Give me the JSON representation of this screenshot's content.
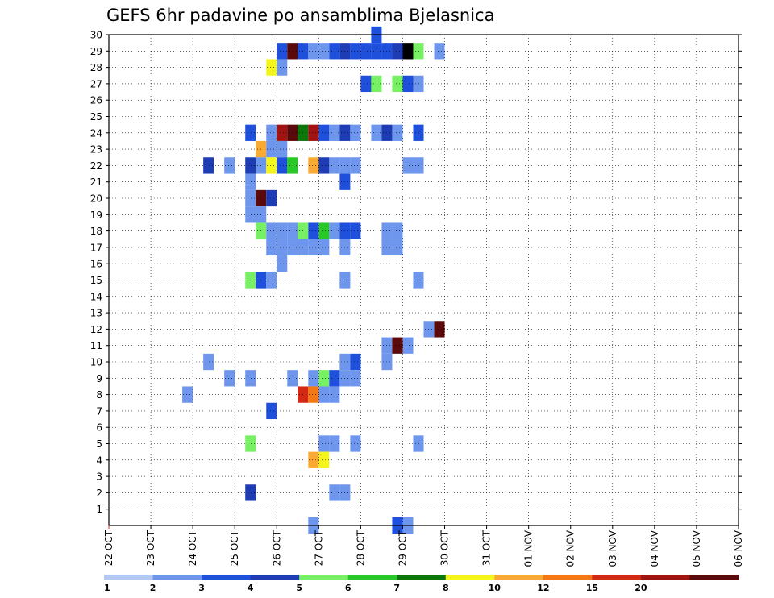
{
  "chart_data": {
    "type": "heatmap",
    "title": "GEFS 6hr padavine po ansamblima Bjelasnica",
    "xlabel": "",
    "ylabel": "",
    "x_tick_labels": [
      "22 OCT",
      "23 OCT",
      "24 OCT",
      "25 OCT",
      "26 OCT",
      "27 OCT",
      "28 OCT",
      "29 OCT",
      "30 OCT",
      "31 OCT",
      "01 NOV",
      "02 NOV",
      "03 NOV",
      "04 NOV",
      "05 NOV",
      "06 NOV"
    ],
    "x_range_days": [
      0,
      15
    ],
    "steps_per_day": 4,
    "y_tick_labels": [
      "1",
      "2",
      "3",
      "4",
      "5",
      "6",
      "7",
      "8",
      "9",
      "10",
      "11",
      "12",
      "13",
      "14",
      "15",
      "16",
      "17",
      "18",
      "19",
      "20",
      "21",
      "22",
      "23",
      "24",
      "25",
      "26",
      "27",
      "28",
      "29",
      "30"
    ],
    "y_range": [
      0,
      30
    ],
    "legend": {
      "labels": [
        "1",
        "2",
        "3",
        "4",
        "5",
        "6",
        "7",
        "8",
        "10",
        "12",
        "15",
        "20"
      ],
      "colors": [
        "#b4c8f5",
        "#6e96ed",
        "#1e50dc",
        "#1e3cb4",
        "#78f064",
        "#28c828",
        "#0a780a",
        "#f5f51e",
        "#faaa32",
        "#f57814",
        "#d22814",
        "#a01414",
        "#5a0a0a"
      ]
    },
    "cells": [
      [
        30,
        25,
        2
      ],
      [
        29,
        16,
        2
      ],
      [
        29,
        17,
        12
      ],
      [
        29,
        18,
        2
      ],
      [
        29,
        19,
        1
      ],
      [
        29,
        20,
        1
      ],
      [
        29,
        21,
        2
      ],
      [
        29,
        22,
        3
      ],
      [
        29,
        23,
        2
      ],
      [
        29,
        24,
        2
      ],
      [
        29,
        25,
        2
      ],
      [
        29,
        26,
        2
      ],
      [
        29,
        27,
        3
      ],
      [
        29,
        28,
        13
      ],
      [
        29,
        29,
        4
      ],
      [
        29,
        31,
        1
      ],
      [
        28,
        15,
        7
      ],
      [
        28,
        16,
        1
      ],
      [
        27,
        24,
        2
      ],
      [
        27,
        25,
        4
      ],
      [
        27,
        27,
        4
      ],
      [
        27,
        28,
        2
      ],
      [
        27,
        29,
        1
      ],
      [
        24,
        13,
        2
      ],
      [
        24,
        15,
        1
      ],
      [
        24,
        16,
        11
      ],
      [
        24,
        17,
        12
      ],
      [
        24,
        18,
        6
      ],
      [
        24,
        19,
        11
      ],
      [
        24,
        20,
        2
      ],
      [
        24,
        21,
        1
      ],
      [
        24,
        22,
        3
      ],
      [
        24,
        23,
        1
      ],
      [
        24,
        25,
        1
      ],
      [
        24,
        26,
        3
      ],
      [
        24,
        27,
        1
      ],
      [
        24,
        29,
        2
      ],
      [
        23,
        14,
        8
      ],
      [
        23,
        15,
        1
      ],
      [
        23,
        16,
        1
      ],
      [
        22,
        9,
        3
      ],
      [
        22,
        11,
        1
      ],
      [
        22,
        13,
        3
      ],
      [
        22,
        14,
        1
      ],
      [
        22,
        15,
        7
      ],
      [
        22,
        16,
        2
      ],
      [
        22,
        17,
        5
      ],
      [
        22,
        19,
        8
      ],
      [
        22,
        20,
        3
      ],
      [
        22,
        21,
        1
      ],
      [
        22,
        22,
        1
      ],
      [
        22,
        23,
        1
      ],
      [
        22,
        28,
        1
      ],
      [
        22,
        29,
        1
      ],
      [
        21,
        13,
        1
      ],
      [
        21,
        22,
        2
      ],
      [
        20,
        13,
        1
      ],
      [
        20,
        14,
        12
      ],
      [
        20,
        15,
        3
      ],
      [
        19,
        13,
        1
      ],
      [
        19,
        14,
        1
      ],
      [
        18,
        14,
        4
      ],
      [
        18,
        15,
        1
      ],
      [
        18,
        16,
        1
      ],
      [
        18,
        17,
        1
      ],
      [
        18,
        18,
        4
      ],
      [
        18,
        19,
        2
      ],
      [
        18,
        20,
        5
      ],
      [
        18,
        21,
        1
      ],
      [
        18,
        22,
        2
      ],
      [
        18,
        23,
        2
      ],
      [
        18,
        26,
        1
      ],
      [
        18,
        27,
        1
      ],
      [
        17,
        15,
        1
      ],
      [
        17,
        16,
        1
      ],
      [
        17,
        17,
        1
      ],
      [
        17,
        18,
        1
      ],
      [
        17,
        19,
        1
      ],
      [
        17,
        20,
        1
      ],
      [
        17,
        22,
        1
      ],
      [
        17,
        26,
        1
      ],
      [
        17,
        27,
        1
      ],
      [
        16,
        16,
        1
      ],
      [
        15,
        13,
        4
      ],
      [
        15,
        14,
        2
      ],
      [
        15,
        15,
        1
      ],
      [
        15,
        22,
        1
      ],
      [
        15,
        29,
        1
      ],
      [
        12,
        30,
        1
      ],
      [
        12,
        31,
        12
      ],
      [
        11,
        26,
        1
      ],
      [
        11,
        27,
        12
      ],
      [
        11,
        28,
        1
      ],
      [
        10,
        9,
        1
      ],
      [
        10,
        22,
        1
      ],
      [
        10,
        23,
        2
      ],
      [
        10,
        26,
        1
      ],
      [
        9,
        11,
        1
      ],
      [
        9,
        13,
        1
      ],
      [
        9,
        17,
        1
      ],
      [
        9,
        19,
        1
      ],
      [
        9,
        20,
        4
      ],
      [
        9,
        21,
        2
      ],
      [
        9,
        22,
        1
      ],
      [
        9,
        23,
        1
      ],
      [
        8,
        7,
        1
      ],
      [
        8,
        18,
        10
      ],
      [
        8,
        19,
        9
      ],
      [
        8,
        20,
        1
      ],
      [
        8,
        21,
        1
      ],
      [
        7,
        15,
        2
      ],
      [
        5,
        13,
        4
      ],
      [
        5,
        20,
        1
      ],
      [
        5,
        21,
        1
      ],
      [
        5,
        23,
        1
      ],
      [
        5,
        29,
        1
      ],
      [
        4,
        19,
        8
      ],
      [
        4,
        20,
        7
      ],
      [
        2,
        13,
        3
      ],
      [
        2,
        21,
        1
      ],
      [
        2,
        22,
        1
      ],
      [
        0,
        19,
        1
      ],
      [
        0,
        27,
        2
      ],
      [
        0,
        28,
        1
      ]
    ],
    "cells_format": "[member_row, column_index_6hr_step, color_index]"
  }
}
